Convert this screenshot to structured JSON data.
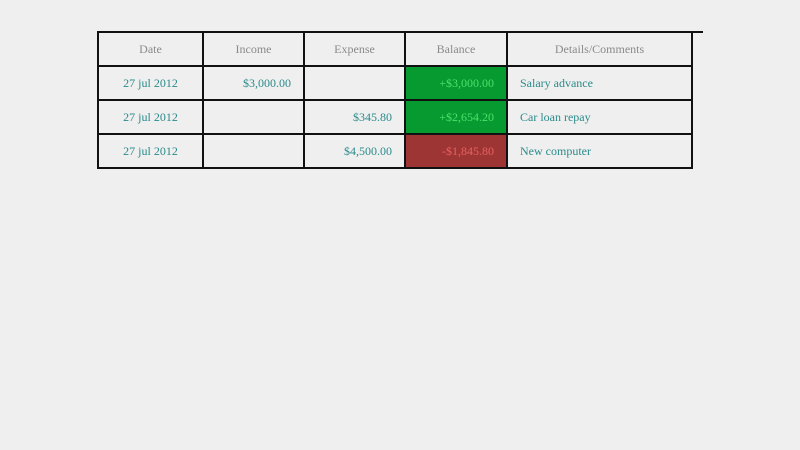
{
  "table": {
    "headers": [
      "Date",
      "Income",
      "Expense",
      "Balance",
      "Details/Comments"
    ],
    "rows": [
      {
        "date": "27 jul 2012",
        "income": "$3,000.00",
        "expense": "",
        "balance": "+$3,000.00",
        "balance_status": "positive",
        "details": "Salary advance"
      },
      {
        "date": "27 jul 2012",
        "income": "",
        "expense": "$345.80",
        "balance": "+$2,654.20",
        "balance_status": "positive",
        "details": "Car loan repay"
      },
      {
        "date": "27 jul 2012",
        "income": "",
        "expense": "$4,500.00",
        "balance": "-$1,845.80",
        "balance_status": "negative",
        "details": "New computer"
      }
    ]
  },
  "colors": {
    "positive": "#069a30",
    "negative": "#9e3535",
    "text": "#2a8a8a"
  }
}
